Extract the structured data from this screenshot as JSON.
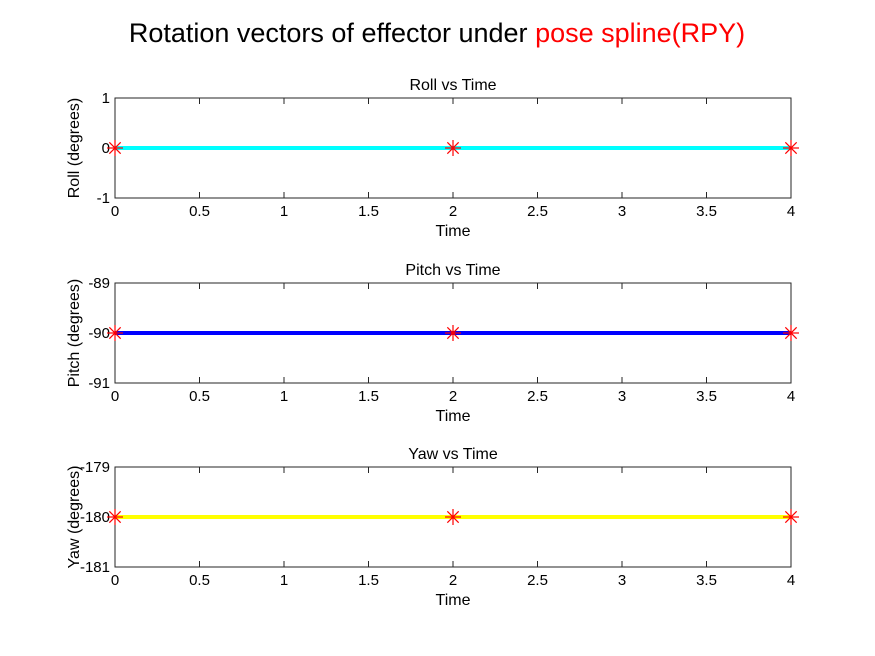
{
  "figure": {
    "title_main": "Rotation vectors of effector under ",
    "title_highlight": "pose spline(RPY)",
    "title_highlight_color": "#ff0000"
  },
  "chart_data": [
    {
      "type": "line",
      "title": "Roll vs Time",
      "xlabel": "Time",
      "ylabel": "Roll (degrees)",
      "xlim": [
        0,
        4
      ],
      "ylim": [
        -1,
        1
      ],
      "xticks": [
        0,
        0.5,
        1,
        1.5,
        2,
        2.5,
        3,
        3.5,
        4
      ],
      "yticks": [
        -1,
        0,
        1
      ],
      "grid": false,
      "line_color": "#00ffff",
      "marker_color": "#ff0000",
      "marker": "asterisk",
      "x": [
        0,
        4
      ],
      "y": [
        0,
        0
      ],
      "marker_points": {
        "x": [
          0,
          2,
          4
        ],
        "y": [
          0,
          0,
          0
        ]
      }
    },
    {
      "type": "line",
      "title": "Pitch vs Time",
      "xlabel": "Time",
      "ylabel": "Pitch (degrees)",
      "xlim": [
        0,
        4
      ],
      "ylim": [
        -91,
        -89
      ],
      "xticks": [
        0,
        0.5,
        1,
        1.5,
        2,
        2.5,
        3,
        3.5,
        4
      ],
      "yticks": [
        -91,
        -90,
        -89
      ],
      "grid": false,
      "line_color": "#0000ff",
      "marker_color": "#ff0000",
      "marker": "asterisk",
      "x": [
        0,
        4
      ],
      "y": [
        -90,
        -90
      ],
      "marker_points": {
        "x": [
          0,
          2,
          4
        ],
        "y": [
          -90,
          -90,
          -90
        ]
      }
    },
    {
      "type": "line",
      "title": "Yaw vs Time",
      "xlabel": "Time",
      "ylabel": "Yaw (degrees)",
      "xlim": [
        0,
        4
      ],
      "ylim": [
        -181,
        -179
      ],
      "xticks": [
        0,
        0.5,
        1,
        1.5,
        2,
        2.5,
        3,
        3.5,
        4
      ],
      "yticks": [
        -181,
        -180,
        -179
      ],
      "grid": false,
      "line_color": "#ffff00",
      "marker_color": "#ff0000",
      "marker": "asterisk",
      "x": [
        0,
        4
      ],
      "y": [
        -180,
        -180
      ],
      "marker_points": {
        "x": [
          0,
          2,
          4
        ],
        "y": [
          -180,
          -180,
          -180
        ]
      }
    }
  ]
}
